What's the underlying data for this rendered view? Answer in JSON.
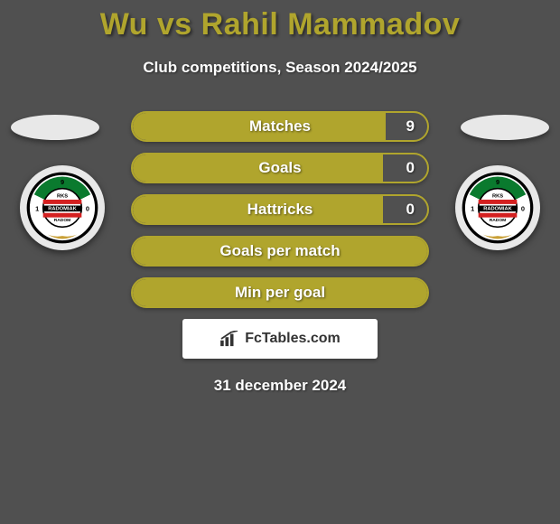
{
  "title": "Wu vs Rahil Mammadov",
  "subtitle": "Club competitions, Season 2024/2025",
  "date": "31 december 2024",
  "watermark": {
    "text": "FcTables.com"
  },
  "colors": {
    "background": "#505050",
    "accent": "#b0a52d",
    "text_light": "#ffffff",
    "ellipse": "#e8e8e8"
  },
  "badge": {
    "top_text": "RKS",
    "mid_text": "RADOMIAK",
    "bottom_text": "RADOM",
    "left_num": "1",
    "right_num": "0",
    "top_num": "9",
    "stripe_colors": [
      "#0a7a2e",
      "#d42020",
      "#000000",
      "#ffffff"
    ],
    "ring_color": "#000000"
  },
  "bars": [
    {
      "label": "Matches",
      "value_right": "9",
      "fill_pct": 86
    },
    {
      "label": "Goals",
      "value_right": "0",
      "fill_pct": 85
    },
    {
      "label": "Hattricks",
      "value_right": "0",
      "fill_pct": 85
    },
    {
      "label": "Goals per match",
      "value_right": "",
      "fill_pct": 100
    },
    {
      "label": "Min per goal",
      "value_right": "",
      "fill_pct": 100
    }
  ]
}
